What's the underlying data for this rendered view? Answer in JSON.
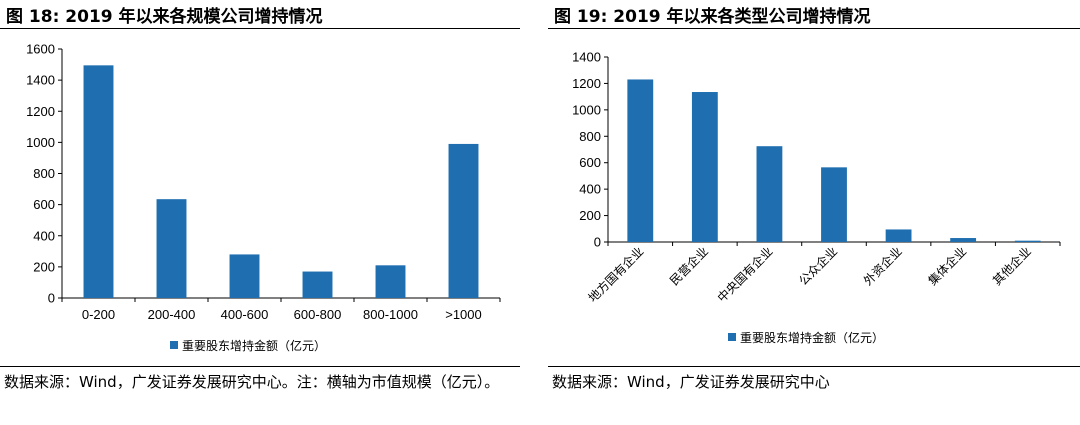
{
  "left": {
    "figure_title": "图 18:  2019 年以来各规模公司增持情况",
    "source_text": "数据来源：Wind，广发证券发展研究中心。注：横轴为市值规模（亿元）。",
    "chart_data": {
      "type": "bar",
      "title": "",
      "xlabel": "",
      "ylabel": "",
      "categories": [
        "0-200",
        "200-400",
        "400-600",
        "600-800",
        "800-1000",
        ">1000"
      ],
      "series": [
        {
          "name": "重要股东增持金额（亿元）",
          "values": [
            1495,
            635,
            280,
            170,
            210,
            990
          ],
          "color": "#1f6fb0"
        }
      ],
      "ylim": [
        0,
        1600
      ],
      "yticks": [
        0,
        200,
        400,
        600,
        800,
        1000,
        1200,
        1400,
        1600
      ],
      "grid": false,
      "legend": "bottom",
      "x_label_rotation": 0
    }
  },
  "right": {
    "figure_title": "图 19:  2019 年以来各类型公司增持情况",
    "source_text": "数据来源：Wind，广发证券发展研究中心",
    "chart_data": {
      "type": "bar",
      "title": "",
      "xlabel": "",
      "ylabel": "",
      "categories": [
        "地方国有企业",
        "民营企业",
        "中央国有企业",
        "公众企业",
        "外资企业",
        "集体企业",
        "其他企业"
      ],
      "series": [
        {
          "name": "重要股东增持金额（亿元）",
          "values": [
            1230,
            1135,
            725,
            565,
            95,
            30,
            10
          ],
          "color": "#1f6fb0"
        }
      ],
      "ylim": [
        0,
        1400
      ],
      "yticks": [
        0,
        200,
        400,
        600,
        800,
        1000,
        1200,
        1400
      ],
      "grid": false,
      "legend": "bottom",
      "x_label_rotation": -45
    }
  }
}
